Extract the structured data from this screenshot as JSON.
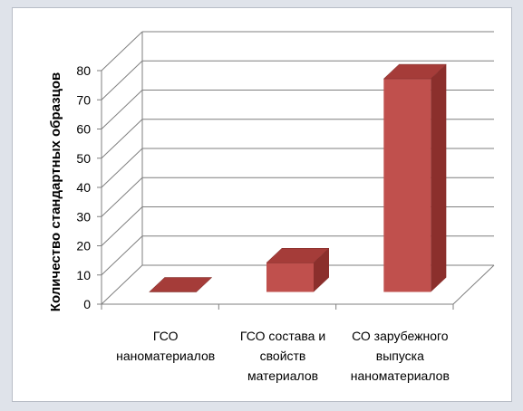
{
  "chart_data": {
    "type": "bar",
    "style": "3d-column",
    "categories": [
      [
        "ГСО",
        "наноматериалов"
      ],
      [
        "ГСО состава и",
        "свойств",
        "материалов"
      ],
      [
        "СО зарубежного",
        "выпуска",
        "наноматериалов"
      ]
    ],
    "values": [
      0,
      10,
      73
    ],
    "ylabel": "Количество стандартных образцов",
    "ylim": [
      0,
      80
    ],
    "yticks": [
      0,
      10,
      20,
      30,
      40,
      50,
      60,
      70,
      80
    ],
    "grid": true,
    "legend": "none",
    "colors": {
      "bar_front": "#c0504d",
      "bar_side": "#8b2f2c",
      "bar_top": "#a53c39",
      "grid": "#7f7f7f"
    }
  }
}
